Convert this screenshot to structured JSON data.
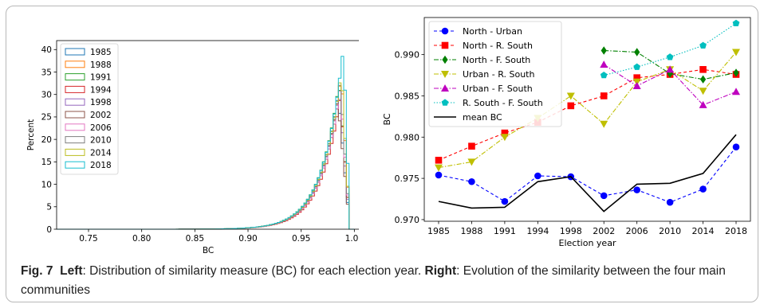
{
  "caption": {
    "fig_label": "Fig. 7",
    "left_word": "Left",
    "left_text": ": Distribution of similarity measure (BC) for each election year. ",
    "right_word": "Right",
    "right_text": ": Evolution of the similarity between the four main communities"
  },
  "chart_data": [
    {
      "type": "area",
      "xlabel": "BC",
      "ylabel": "Percent",
      "xlim": [
        0.72,
        1.005
      ],
      "ylim": [
        0,
        42
      ],
      "xticks": [
        "0.75",
        "0.80",
        "0.85",
        "0.90",
        "0.95",
        "1.00"
      ],
      "yticks": [
        "0",
        "5",
        "10",
        "15",
        "20",
        "25",
        "30",
        "35",
        "40"
      ],
      "legend_position": "upper-left",
      "series": [
        {
          "name": "1985",
          "color": "#1f77b4",
          "peak": 31,
          "mode": 0.985
        },
        {
          "name": "1988",
          "color": "#ff7f0e",
          "peak": 35,
          "mode": 0.988
        },
        {
          "name": "1991",
          "color": "#2ca02c",
          "peak": 33,
          "mode": 0.986
        },
        {
          "name": "1994",
          "color": "#d62728",
          "peak": 30,
          "mode": 0.987
        },
        {
          "name": "1998",
          "color": "#9467bd",
          "peak": 31,
          "mode": 0.986
        },
        {
          "name": "2002",
          "color": "#8c564b",
          "peak": 29,
          "mode": 0.985
        },
        {
          "name": "2006",
          "color": "#e377c2",
          "peak": 32,
          "mode": 0.987
        },
        {
          "name": "2010",
          "color": "#7f7f7f",
          "peak": 33,
          "mode": 0.987
        },
        {
          "name": "2014",
          "color": "#bcbd22",
          "peak": 36,
          "mode": 0.988
        },
        {
          "name": "2018",
          "color": "#17becf",
          "peak": 41,
          "mode": 0.99
        }
      ]
    },
    {
      "type": "line",
      "xlabel": "Election year",
      "ylabel": "BC",
      "categories": [
        "1985",
        "1988",
        "1991",
        "1994",
        "1998",
        "2002",
        "2006",
        "2010",
        "2014",
        "2018"
      ],
      "ylim": [
        0.9698,
        0.9945
      ],
      "yticks": [
        "0.970",
        "0.975",
        "0.980",
        "0.985",
        "0.990"
      ],
      "legend_position": "upper-left",
      "series": [
        {
          "name": "North - Urban",
          "color": "#0000ff",
          "marker": "circle",
          "dash": "4,3",
          "values": [
            0.9754,
            0.9746,
            0.9722,
            0.9753,
            0.9752,
            0.9729,
            0.9736,
            0.9721,
            0.9737,
            0.9788
          ]
        },
        {
          "name": "North - R. South",
          "color": "#ff0000",
          "marker": "square",
          "dash": "4,3",
          "values": [
            0.9772,
            0.9789,
            0.9805,
            0.9818,
            0.9838,
            0.985,
            0.9872,
            0.9876,
            0.9882,
            0.9876
          ]
        },
        {
          "name": "North - F. South",
          "color": "#008000",
          "marker": "diamond",
          "dash": "6,2,1.5,2",
          "values": [
            null,
            null,
            null,
            null,
            null,
            0.9905,
            0.9903,
            0.9877,
            0.987,
            0.9878
          ]
        },
        {
          "name": "Urban - R. South",
          "color": "#bfbf00",
          "marker": "triangle-down",
          "dash": "6,2,1.5,2",
          "values": [
            0.9763,
            0.977,
            0.98,
            0.9823,
            0.985,
            0.9816,
            0.9867,
            0.9882,
            0.9856,
            0.9903
          ]
        },
        {
          "name": "Urban - F. South",
          "color": "#bf00bf",
          "marker": "triangle-up",
          "dash": "6,2,1.5,2",
          "values": [
            null,
            null,
            null,
            null,
            null,
            0.9888,
            0.9862,
            0.9882,
            0.9839,
            0.9855
          ]
        },
        {
          "name": "R. South - F. South",
          "color": "#00bfbf",
          "marker": "pentagon",
          "dash": "1.5,2",
          "values": [
            null,
            null,
            null,
            null,
            null,
            0.9875,
            0.9885,
            0.9897,
            0.9911,
            0.9938
          ]
        },
        {
          "name": "mean BC",
          "color": "#000000",
          "marker": "none",
          "dash": "",
          "values": [
            0.9722,
            0.9714,
            0.9715,
            0.9746,
            0.9752,
            0.971,
            0.9743,
            0.9744,
            0.9756,
            0.9803
          ]
        }
      ]
    }
  ]
}
